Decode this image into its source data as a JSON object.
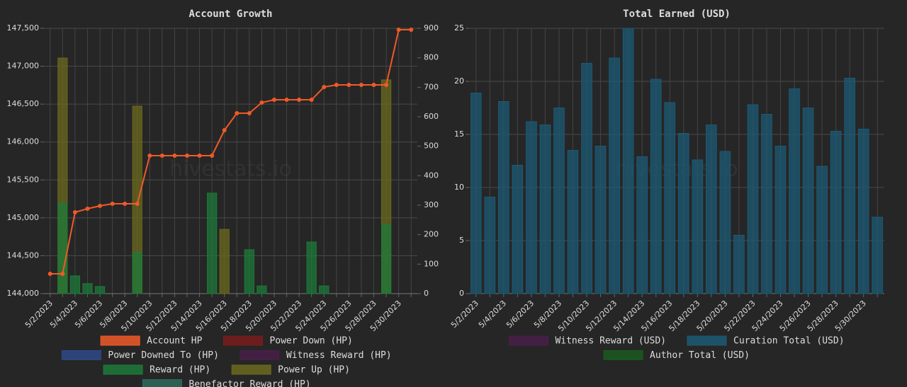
{
  "chart_data": [
    {
      "type": "bar",
      "title": "Account Growth",
      "watermark": "hivestats.io",
      "categories": [
        "5/2/2023",
        null,
        "5/4/2023",
        null,
        "5/6/2023",
        null,
        "5/8/2023",
        null,
        "5/10/2023",
        null,
        "5/12/2023",
        null,
        "5/14/2023",
        null,
        "5/16/2023",
        null,
        "5/18/2023",
        null,
        "5/20/2023",
        null,
        "5/22/2023",
        null,
        "5/24/2023",
        null,
        "5/26/2023",
        null,
        "5/28/2023",
        null,
        "5/30/2023",
        null
      ],
      "ylim": [
        144000,
        147500
      ],
      "yticks": [
        {
          "value": 144000,
          "label": "144,000"
        },
        {
          "value": 144500,
          "label": "144,500"
        },
        {
          "value": 145000,
          "label": "145,000"
        },
        {
          "value": 145500,
          "label": "145,500"
        },
        {
          "value": 146000,
          "label": "146,000"
        },
        {
          "value": 146500,
          "label": "146,500"
        },
        {
          "value": 147000,
          "label": "147,000"
        },
        {
          "value": 147500,
          "label": "147,500"
        }
      ],
      "y2lim": [
        0,
        900
      ],
      "y2ticks": [
        0,
        100,
        200,
        300,
        400,
        500,
        600,
        700,
        800,
        900
      ],
      "grid": true,
      "series": [
        {
          "name": "Account HP",
          "type": "line",
          "color": "#f05a28",
          "values": [
            144261,
            144261,
            145073,
            145120,
            145157,
            145185,
            145185,
            145185,
            145820,
            145820,
            145820,
            145820,
            145820,
            145820,
            146156,
            146380,
            146380,
            146520,
            146557,
            146557,
            146557,
            146557,
            146725,
            146753,
            146753,
            146753,
            146753,
            146753,
            147481,
            147481
          ]
        },
        {
          "name": "Power Down (HP)",
          "axis": "y2",
          "color": "#7a1c1c",
          "values": [
            null,
            null,
            null,
            null,
            null,
            null,
            null,
            null,
            null,
            null,
            null,
            null,
            null,
            null,
            null,
            null,
            null,
            null,
            null,
            null,
            null,
            null,
            null,
            null,
            null,
            null,
            null,
            null,
            null,
            null
          ]
        },
        {
          "name": "Power Downed To (HP)",
          "axis": "y2",
          "color": "#2e4a86",
          "values": [
            null,
            null,
            null,
            null,
            null,
            null,
            null,
            null,
            null,
            null,
            null,
            null,
            null,
            null,
            null,
            null,
            null,
            null,
            null,
            null,
            null,
            null,
            null,
            null,
            null,
            null,
            null,
            null,
            null,
            null
          ]
        },
        {
          "name": "Witness Reward (HP)",
          "axis": "y2",
          "color": "#4a1f4a",
          "values": [
            null,
            null,
            null,
            null,
            null,
            null,
            null,
            null,
            null,
            null,
            null,
            null,
            null,
            null,
            null,
            null,
            null,
            null,
            null,
            null,
            null,
            null,
            null,
            null,
            null,
            null,
            null,
            null,
            null,
            null
          ]
        },
        {
          "name": "Reward (HP)",
          "axis": "y2",
          "color": "#1e7a3a",
          "values": [
            null,
            307,
            60,
            34,
            24,
            null,
            null,
            139,
            null,
            null,
            null,
            null,
            null,
            341,
            null,
            null,
            149,
            26,
            null,
            null,
            null,
            175,
            26,
            null,
            null,
            null,
            null,
            235,
            null,
            null
          ]
        },
        {
          "name": "Power Up (HP)",
          "axis": "y2",
          "color": "#6b6a1e",
          "values": [
            null,
            799,
            null,
            null,
            null,
            null,
            null,
            636,
            null,
            null,
            null,
            null,
            null,
            null,
            218,
            null,
            null,
            null,
            null,
            null,
            null,
            null,
            null,
            null,
            null,
            null,
            null,
            725,
            null,
            null
          ]
        },
        {
          "name": "Benefactor Reward (HP)",
          "axis": "y2",
          "color": "#2e6b5e",
          "values": [
            null,
            null,
            null,
            null,
            null,
            null,
            null,
            null,
            null,
            null,
            null,
            null,
            null,
            null,
            null,
            null,
            null,
            null,
            null,
            null,
            null,
            null,
            null,
            null,
            null,
            null,
            null,
            null,
            null,
            null
          ]
        }
      ]
    },
    {
      "type": "bar",
      "title": "Total Earned (USD)",
      "watermark": "hivestats.io",
      "categories": [
        "5/2/2023",
        null,
        "5/4/2023",
        null,
        "5/6/2023",
        null,
        "5/8/2023",
        null,
        "5/10/2023",
        null,
        "5/12/2023",
        null,
        "5/14/2023",
        null,
        "5/16/2023",
        null,
        "5/18/2023",
        null,
        "5/20/2023",
        null,
        "5/22/2023",
        null,
        "5/24/2023",
        null,
        "5/26/2023",
        null,
        "5/28/2023",
        null,
        "5/30/2023",
        null
      ],
      "ylim": [
        0,
        25
      ],
      "yticks": [
        0,
        5,
        10,
        15,
        20,
        25
      ],
      "grid": true,
      "series": [
        {
          "name": "Witness Reward (USD)",
          "color": "#4a1f4a",
          "values": [
            null,
            null,
            null,
            null,
            null,
            null,
            null,
            null,
            null,
            null,
            null,
            null,
            null,
            null,
            null,
            null,
            null,
            null,
            null,
            null,
            null,
            null,
            null,
            null,
            null,
            null,
            null,
            null,
            null,
            null
          ]
        },
        {
          "name": "Curation Total (USD)",
          "color": "#1c5a74",
          "values": [
            18.9,
            9.1,
            18.1,
            12.1,
            16.2,
            15.9,
            17.5,
            13.5,
            21.7,
            13.9,
            22.2,
            25,
            12.9,
            20.2,
            18.0,
            15.1,
            12.6,
            15.9,
            13.4,
            5.5,
            17.8,
            16.9,
            13.9,
            19.3,
            17.5,
            12.0,
            15.3,
            20.3,
            15.5,
            7.2
          ]
        },
        {
          "name": "Author Total (USD)",
          "color": "#1a5a1e",
          "values": [
            null,
            null,
            null,
            null,
            null,
            null,
            null,
            null,
            null,
            null,
            null,
            null,
            null,
            null,
            null,
            null,
            null,
            null,
            null,
            null,
            null,
            null,
            null,
            null,
            null,
            null,
            null,
            null,
            null,
            null
          ]
        }
      ]
    }
  ]
}
